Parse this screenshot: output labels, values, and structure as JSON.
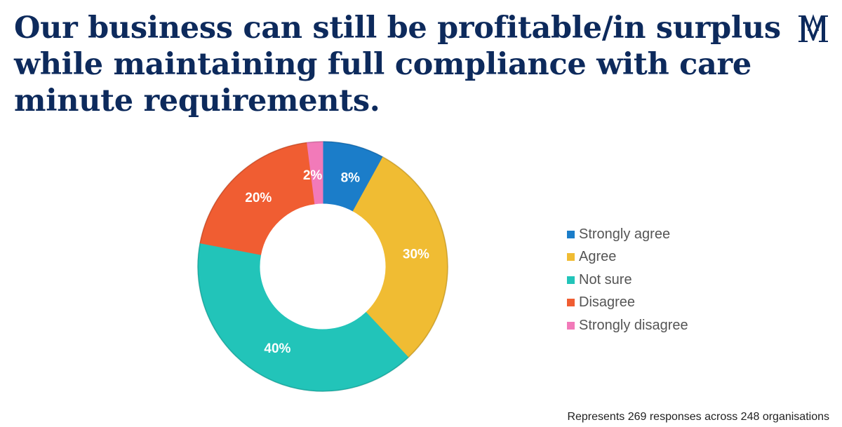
{
  "page": {
    "title": "Our business can still be profitable/in surplus while maintaining full compliance with care minute requirements.",
    "footnote": "Represents 269 responses across 248 organisations",
    "logo_icon": "monogram-logo-icon"
  },
  "chart_data": {
    "type": "pie",
    "variant": "donut",
    "title": "Our business can still be profitable/in surplus while maintaining full compliance with care minute requirements.",
    "series": [
      {
        "name": "Strongly agree",
        "value": 8,
        "label": "8%",
        "color": "#1b7dc9"
      },
      {
        "name": "Agree",
        "value": 30,
        "label": "30%",
        "color": "#f0bc33"
      },
      {
        "name": "Not sure",
        "value": 40,
        "label": "40%",
        "color": "#22c4b9"
      },
      {
        "name": "Disagree",
        "value": 20,
        "label": "20%",
        "color": "#f05d32"
      },
      {
        "name": "Strongly disagree",
        "value": 2,
        "label": "2%",
        "color": "#f27ab9"
      }
    ],
    "legend_position": "right",
    "start_angle": "top, clockwise"
  }
}
